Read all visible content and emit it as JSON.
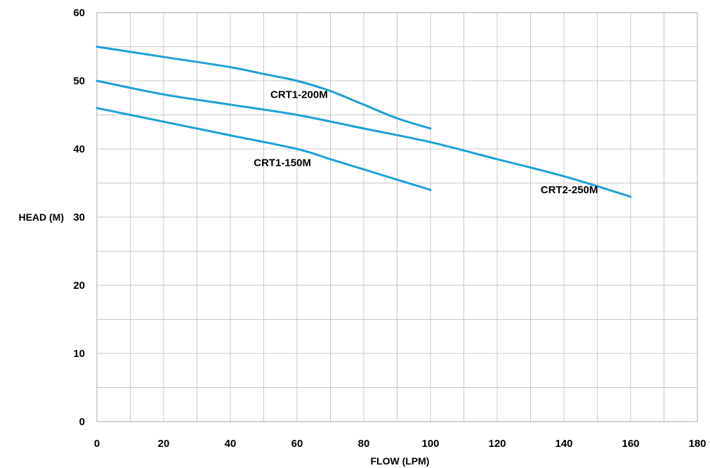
{
  "chart_data": {
    "type": "line",
    "title": "",
    "xlabel": "FLOW (LPM)",
    "ylabel": "HEAD (M)",
    "xlim": [
      0,
      180
    ],
    "ylim": [
      0,
      60
    ],
    "x_ticks": [
      0,
      20,
      40,
      60,
      80,
      100,
      120,
      140,
      160,
      180
    ],
    "y_ticks": [
      0,
      10,
      20,
      30,
      40,
      50,
      60
    ],
    "x_grid_step": 10,
    "y_grid_step": 5,
    "grid": true,
    "legend": "none",
    "line_color": "#1f9fd6",
    "series": [
      {
        "name": "CRT1-200M",
        "x": [
          0,
          20,
          40,
          50,
          60,
          70,
          80,
          90,
          100
        ],
        "y": [
          55,
          53.5,
          52,
          51,
          50,
          48.5,
          46.5,
          44.5,
          43
        ]
      },
      {
        "name": "CRT2-250M",
        "x": [
          0,
          20,
          40,
          60,
          80,
          100,
          120,
          140,
          160
        ],
        "y": [
          50,
          48,
          46.5,
          45,
          43,
          41,
          38.5,
          36,
          33
        ]
      },
      {
        "name": "CRT1-150M",
        "x": [
          0,
          20,
          40,
          60,
          70,
          80,
          90,
          100
        ],
        "y": [
          46,
          44,
          42,
          40,
          38.5,
          37,
          35.5,
          34
        ]
      }
    ]
  }
}
